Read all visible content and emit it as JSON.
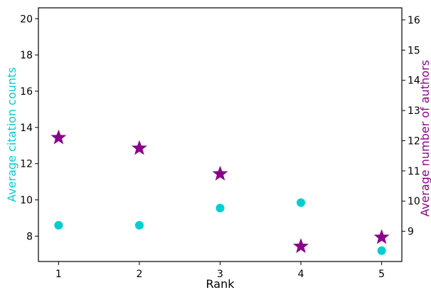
{
  "chart_data": {
    "type": "scatter",
    "xlabel": "Rank",
    "ylabel_left": "Average citation counts",
    "ylabel_right": "Average number of authors",
    "xlim": [
      0.75,
      5.25
    ],
    "ylim_left": [
      6.6,
      20.6
    ],
    "ylim_right": [
      8.0,
      16.4
    ],
    "x_ticks": [
      1,
      2,
      3,
      4,
      5
    ],
    "y_ticks_left": [
      8,
      10,
      12,
      14,
      16,
      18,
      20
    ],
    "y_ticks_right": [
      9,
      10,
      11,
      12,
      13,
      14,
      15,
      16
    ],
    "grid": false,
    "series": [
      {
        "axis": "left",
        "marker": "circle",
        "color": "#00CED1",
        "x": [
          1,
          2,
          3,
          4,
          5
        ],
        "y": [
          8.6,
          8.6,
          9.55,
          9.85,
          7.2
        ]
      },
      {
        "axis": "right",
        "marker": "star",
        "color": "#8B008B",
        "x": [
          1,
          2,
          3,
          4,
          5
        ],
        "y": [
          12.1,
          11.75,
          10.9,
          8.5,
          8.8
        ]
      }
    ]
  },
  "colors": {
    "left_axis_label": "#00CED1",
    "right_axis_label": "#8B008B"
  }
}
